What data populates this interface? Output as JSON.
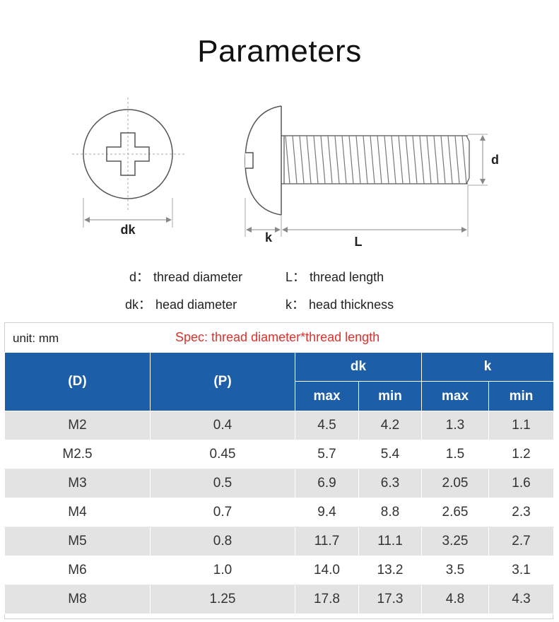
{
  "title": "Parameters",
  "diagram": {
    "dk_label": "dk",
    "d_label": "d",
    "k_label": "k",
    "L_label": "L"
  },
  "legend": [
    {
      "symbol": "d：",
      "text": "thread diameter"
    },
    {
      "symbol": "L：",
      "text": "thread length"
    },
    {
      "symbol": "dk：",
      "text": "head diameter"
    },
    {
      "symbol": "k：",
      "text": "head thickness"
    }
  ],
  "table": {
    "unit": "unit: mm",
    "spec": "Spec: thread diameter*thread length",
    "headers": {
      "d": "(D)",
      "p": "(P)",
      "dk": "dk",
      "k": "k",
      "max": "max",
      "min": "min"
    },
    "rows": [
      {
        "d": "M2",
        "p": "0.4",
        "dk_max": "4.5",
        "dk_min": "4.2",
        "k_max": "1.3",
        "k_min": "1.1"
      },
      {
        "d": "M2.5",
        "p": "0.45",
        "dk_max": "5.7",
        "dk_min": "5.4",
        "k_max": "1.5",
        "k_min": "1.2"
      },
      {
        "d": "M3",
        "p": "0.5",
        "dk_max": "6.9",
        "dk_min": "6.3",
        "k_max": "2.05",
        "k_min": "1.6"
      },
      {
        "d": "M4",
        "p": "0.7",
        "dk_max": "9.4",
        "dk_min": "8.8",
        "k_max": "2.65",
        "k_min": "2.3"
      },
      {
        "d": "M5",
        "p": "0.8",
        "dk_max": "11.7",
        "dk_min": "11.1",
        "k_max": "3.25",
        "k_min": "2.7"
      },
      {
        "d": "M6",
        "p": "1.0",
        "dk_max": "14.0",
        "dk_min": "13.2",
        "k_max": "3.5",
        "k_min": "3.1"
      },
      {
        "d": "M8",
        "p": "1.25",
        "dk_max": "17.8",
        "dk_min": "17.3",
        "k_max": "4.8",
        "k_min": "4.3"
      }
    ]
  },
  "colors": {
    "header_blue": "#1d5ea8",
    "spec_red": "#e0312b",
    "row_gray": "#e3e3e3"
  }
}
